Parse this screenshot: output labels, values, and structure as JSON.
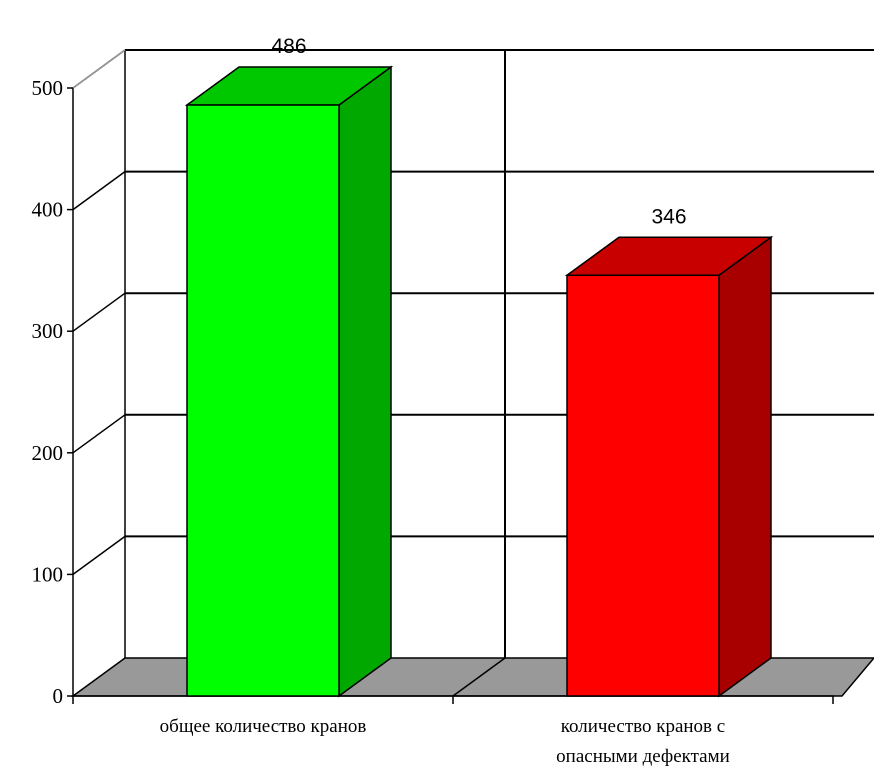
{
  "chart_data": {
    "type": "bar",
    "categories": [
      [
        "общее количество кранов"
      ],
      [
        "количество кранов с",
        "опасными дефектами"
      ]
    ],
    "values": [
      486,
      346
    ],
    "ylim": [
      0,
      500
    ],
    "yticks": [
      0,
      100,
      200,
      300,
      400,
      500
    ],
    "bar_colors": [
      {
        "front": "#00ff00",
        "side": "#00a800",
        "top": "#00c800"
      },
      {
        "front": "#ff0000",
        "side": "#a80000",
        "top": "#c80000"
      }
    ],
    "floor_color": "#999999",
    "grid": true,
    "style": "3d",
    "data_labels": [
      "486",
      "346"
    ]
  }
}
